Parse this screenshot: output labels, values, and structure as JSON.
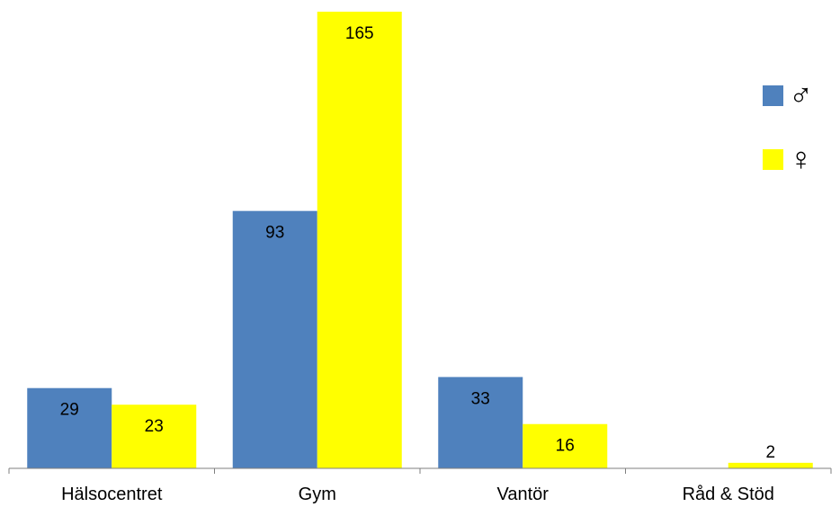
{
  "chart_data": {
    "type": "bar",
    "categories": [
      "Hälsocentret",
      "Gym",
      "Vantör",
      "Råd & Stöd"
    ],
    "series": [
      {
        "name": "♂",
        "color": "#4F81BD",
        "values": [
          29,
          93,
          33,
          0
        ]
      },
      {
        "name": "♀",
        "color": "#FFFF00",
        "values": [
          23,
          165,
          16,
          2
        ]
      }
    ],
    "data_labels": [
      [
        "29",
        "93",
        "33",
        ""
      ],
      [
        "23",
        "165",
        "16",
        "2"
      ]
    ],
    "ylim": [
      0,
      165
    ],
    "grid": false,
    "legend_position": "right"
  }
}
